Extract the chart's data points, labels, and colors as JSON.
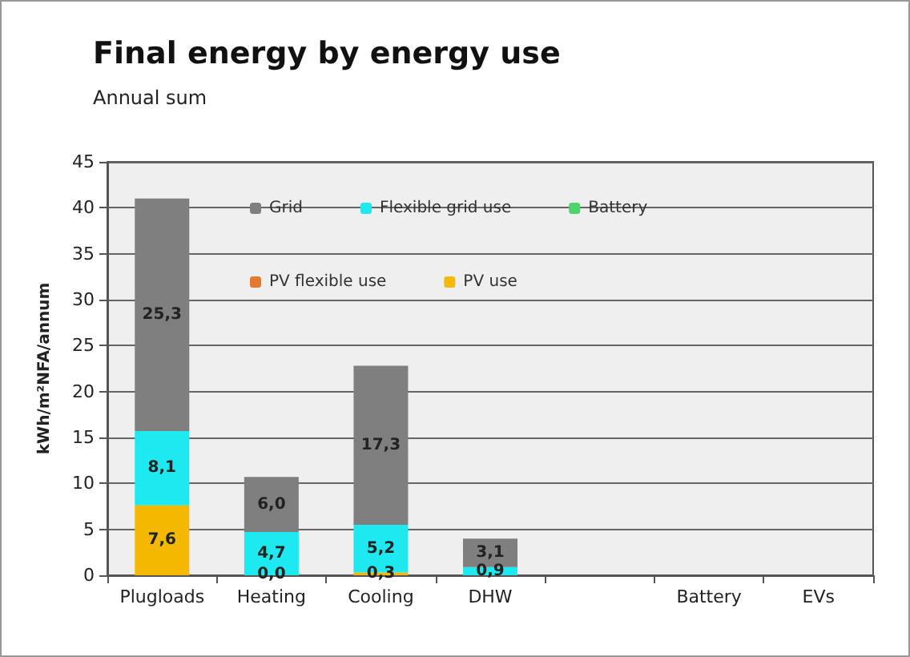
{
  "chart_data": {
    "type": "bar",
    "title": "Final energy by energy use",
    "subtitle": "Annual sum",
    "ylabel": "kWh/m²NFA/annum",
    "categories": [
      "Plugloads",
      "Heating",
      "Cooling",
      "DHW",
      null,
      "Battery",
      "EVs"
    ],
    "series": [
      {
        "name": "PV use",
        "color": "#f5b800",
        "values": [
          7.6,
          0.0,
          0.3,
          null,
          null,
          null,
          null
        ],
        "value_labels": [
          "7,6",
          "0,0",
          "0,3",
          null,
          null,
          null,
          null
        ]
      },
      {
        "name": "PV flexible use",
        "color": "#e07b30",
        "values": [
          null,
          null,
          null,
          null,
          null,
          null,
          null
        ]
      },
      {
        "name": "Battery",
        "color": "#4cd36a",
        "values": [
          null,
          null,
          null,
          null,
          null,
          null,
          null
        ]
      },
      {
        "name": "Flexible grid use",
        "color": "#1ee8f0",
        "values": [
          8.1,
          4.7,
          5.2,
          0.9,
          null,
          null,
          null
        ],
        "value_labels": [
          "8,1",
          "4,7",
          "5,2",
          "0,9",
          null,
          null,
          null
        ]
      },
      {
        "name": "Grid",
        "color": "#7f7f7f",
        "values": [
          25.3,
          6.0,
          17.3,
          3.1,
          null,
          null,
          null
        ],
        "value_labels": [
          "25,3",
          "6,0",
          "17,3",
          "3,1",
          null,
          null,
          null
        ]
      }
    ],
    "stacked": true,
    "ylim": [
      0,
      45
    ],
    "yticks": [
      0,
      5,
      10,
      15,
      20,
      25,
      30,
      35,
      40,
      45
    ],
    "grid": "y",
    "legend": "top"
  }
}
